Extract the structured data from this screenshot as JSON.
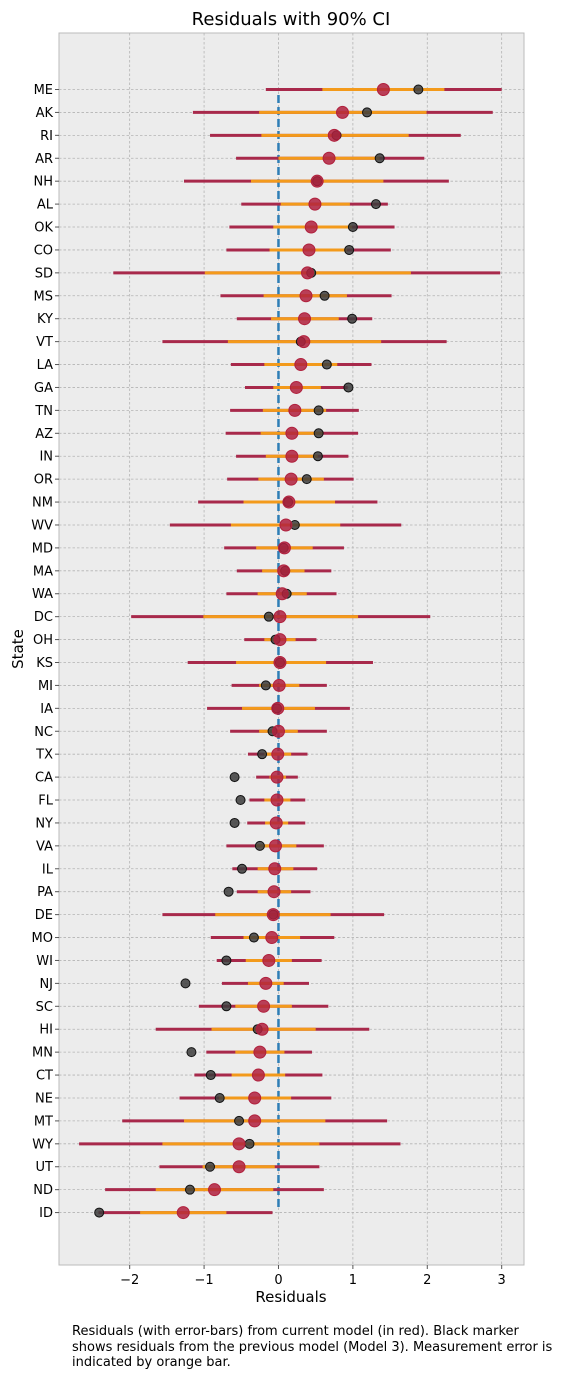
{
  "chart_data": {
    "type": "scatter",
    "title": "Residuals with 90% CI",
    "xlabel": "Residuals",
    "ylabel": "State",
    "xlim": [
      -2.95,
      3.3
    ],
    "xticks": [
      -2,
      -1,
      0,
      1,
      2,
      3
    ],
    "xtick_labels": [
      "−2",
      "−1",
      "0",
      "1",
      "2",
      "3"
    ],
    "grid": true,
    "reference_line_x": 0,
    "colors": {
      "background": "#ececec",
      "current": "#b0203d",
      "ci_line": "#a8294b",
      "measurement": "#f39a1b",
      "previous": "#3c3c3c",
      "reference": "#2e7eb6",
      "grid": "#b3b3b3"
    },
    "states": [
      {
        "state": "ME",
        "current": 1.41,
        "ci": [
          -0.17,
          3.0
        ],
        "meas": [
          0.59,
          2.23
        ],
        "previous": 1.88
      },
      {
        "state": "AK",
        "current": 0.86,
        "ci": [
          -1.15,
          2.88
        ],
        "meas": [
          -0.26,
          1.99
        ],
        "previous": 1.19
      },
      {
        "state": "RI",
        "current": 0.75,
        "ci": [
          -0.92,
          2.45
        ],
        "meas": [
          -0.23,
          1.75
        ],
        "previous": 0.78
      },
      {
        "state": "AR",
        "current": 0.68,
        "ci": [
          -0.57,
          1.96
        ],
        "meas": [
          0.0,
          1.36
        ],
        "previous": 1.36
      },
      {
        "state": "NH",
        "current": 0.52,
        "ci": [
          -1.27,
          2.29
        ],
        "meas": [
          -0.37,
          1.41
        ],
        "previous": 0.52
      },
      {
        "state": "AL",
        "current": 0.49,
        "ci": [
          -0.5,
          1.47
        ],
        "meas": [
          0.03,
          0.96
        ],
        "previous": 1.31
      },
      {
        "state": "OK",
        "current": 0.44,
        "ci": [
          -0.66,
          1.56
        ],
        "meas": [
          -0.07,
          0.99
        ],
        "previous": 1.0
      },
      {
        "state": "CO",
        "current": 0.41,
        "ci": [
          -0.7,
          1.51
        ],
        "meas": [
          -0.12,
          0.92
        ],
        "previous": 0.95
      },
      {
        "state": "SD",
        "current": 0.39,
        "ci": [
          -2.22,
          2.98
        ],
        "meas": [
          -0.99,
          1.78
        ],
        "previous": 0.44
      },
      {
        "state": "MS",
        "current": 0.37,
        "ci": [
          -0.78,
          1.52
        ],
        "meas": [
          -0.2,
          0.92
        ],
        "previous": 0.62
      },
      {
        "state": "KY",
        "current": 0.35,
        "ci": [
          -0.56,
          1.26
        ],
        "meas": [
          -0.1,
          0.81
        ],
        "previous": 0.99
      },
      {
        "state": "VT",
        "current": 0.34,
        "ci": [
          -1.56,
          2.26
        ],
        "meas": [
          -0.68,
          1.38
        ],
        "previous": 0.3
      },
      {
        "state": "LA",
        "current": 0.3,
        "ci": [
          -0.64,
          1.25
        ],
        "meas": [
          -0.19,
          0.79
        ],
        "previous": 0.65
      },
      {
        "state": "GA",
        "current": 0.24,
        "ci": [
          -0.45,
          0.93
        ],
        "meas": [
          -0.07,
          0.57
        ],
        "previous": 0.94
      },
      {
        "state": "TN",
        "current": 0.22,
        "ci": [
          -0.65,
          1.08
        ],
        "meas": [
          -0.21,
          0.64
        ],
        "previous": 0.54
      },
      {
        "state": "AZ",
        "current": 0.18,
        "ci": [
          -0.71,
          1.07
        ],
        "meas": [
          -0.24,
          0.6
        ],
        "previous": 0.54
      },
      {
        "state": "IN",
        "current": 0.18,
        "ci": [
          -0.57,
          0.94
        ],
        "meas": [
          -0.17,
          0.53
        ],
        "previous": 0.53
      },
      {
        "state": "OR",
        "current": 0.17,
        "ci": [
          -0.69,
          1.01
        ],
        "meas": [
          -0.27,
          0.61
        ],
        "previous": 0.38
      },
      {
        "state": "NM",
        "current": 0.14,
        "ci": [
          -1.08,
          1.33
        ],
        "meas": [
          -0.47,
          0.76
        ],
        "previous": 0.13
      },
      {
        "state": "WV",
        "current": 0.1,
        "ci": [
          -1.46,
          1.65
        ],
        "meas": [
          -0.64,
          0.83
        ],
        "previous": 0.22
      },
      {
        "state": "MD",
        "current": 0.08,
        "ci": [
          -0.73,
          0.88
        ],
        "meas": [
          -0.3,
          0.46
        ],
        "previous": 0.07
      },
      {
        "state": "MA",
        "current": 0.07,
        "ci": [
          -0.56,
          0.71
        ],
        "meas": [
          -0.22,
          0.35
        ],
        "previous": 0.09
      },
      {
        "state": "WA",
        "current": 0.05,
        "ci": [
          -0.7,
          0.78
        ],
        "meas": [
          -0.28,
          0.38
        ],
        "previous": 0.11
      },
      {
        "state": "DC",
        "current": 0.02,
        "ci": [
          -1.98,
          2.04
        ],
        "meas": [
          -1.01,
          1.07
        ],
        "previous": -0.13
      },
      {
        "state": "OH",
        "current": 0.02,
        "ci": [
          -0.46,
          0.51
        ],
        "meas": [
          -0.19,
          0.23
        ],
        "previous": -0.04
      },
      {
        "state": "KS",
        "current": 0.02,
        "ci": [
          -1.22,
          1.27
        ],
        "meas": [
          -0.57,
          0.64
        ],
        "previous": 0.02
      },
      {
        "state": "MI",
        "current": 0.01,
        "ci": [
          -0.63,
          0.65
        ],
        "meas": [
          -0.26,
          0.28
        ],
        "previous": -0.17
      },
      {
        "state": "IA",
        "current": -0.01,
        "ci": [
          -0.96,
          0.96
        ],
        "meas": [
          -0.49,
          0.49
        ],
        "previous": -0.02
      },
      {
        "state": "NC",
        "current": 0.0,
        "ci": [
          -0.65,
          0.65
        ],
        "meas": [
          -0.26,
          0.26
        ],
        "previous": -0.08
      },
      {
        "state": "TX",
        "current": -0.01,
        "ci": [
          -0.41,
          0.39
        ],
        "meas": [
          -0.19,
          0.17
        ],
        "previous": -0.22
      },
      {
        "state": "CA",
        "current": -0.02,
        "ci": [
          -0.3,
          0.26
        ],
        "meas": [
          -0.12,
          0.1
        ],
        "previous": -0.59
      },
      {
        "state": "FL",
        "current": -0.02,
        "ci": [
          -0.39,
          0.36
        ],
        "meas": [
          -0.19,
          0.16
        ],
        "previous": -0.51
      },
      {
        "state": "NY",
        "current": -0.03,
        "ci": [
          -0.42,
          0.36
        ],
        "meas": [
          -0.18,
          0.13
        ],
        "previous": -0.59
      },
      {
        "state": "VA",
        "current": -0.04,
        "ci": [
          -0.7,
          0.61
        ],
        "meas": [
          -0.3,
          0.24
        ],
        "previous": -0.25
      },
      {
        "state": "IL",
        "current": -0.05,
        "ci": [
          -0.62,
          0.52
        ],
        "meas": [
          -0.28,
          0.2
        ],
        "previous": -0.49
      },
      {
        "state": "PA",
        "current": -0.06,
        "ci": [
          -0.56,
          0.43
        ],
        "meas": [
          -0.28,
          0.17
        ],
        "previous": -0.67
      },
      {
        "state": "DE",
        "current": -0.07,
        "ci": [
          -1.56,
          1.42
        ],
        "meas": [
          -0.85,
          0.7
        ],
        "previous": -0.07
      },
      {
        "state": "MO",
        "current": -0.09,
        "ci": [
          -0.91,
          0.75
        ],
        "meas": [
          -0.47,
          0.29
        ],
        "previous": -0.33
      },
      {
        "state": "WI",
        "current": -0.13,
        "ci": [
          -0.83,
          0.58
        ],
        "meas": [
          -0.44,
          0.18
        ],
        "previous": -0.7
      },
      {
        "state": "NJ",
        "current": -0.17,
        "ci": [
          -0.76,
          0.41
        ],
        "meas": [
          -0.41,
          0.07
        ],
        "previous": -1.25
      },
      {
        "state": "SC",
        "current": -0.2,
        "ci": [
          -1.07,
          0.67
        ],
        "meas": [
          -0.58,
          0.18
        ],
        "previous": -0.7
      },
      {
        "state": "HI",
        "current": -0.22,
        "ci": [
          -1.65,
          1.22
        ],
        "meas": [
          -0.9,
          0.5
        ],
        "previous": -0.28
      },
      {
        "state": "MN",
        "current": -0.25,
        "ci": [
          -0.97,
          0.45
        ],
        "meas": [
          -0.58,
          0.08
        ],
        "previous": -1.17
      },
      {
        "state": "CT",
        "current": -0.27,
        "ci": [
          -1.13,
          0.59
        ],
        "meas": [
          -0.63,
          0.09
        ],
        "previous": -0.91
      },
      {
        "state": "NE",
        "current": -0.32,
        "ci": [
          -1.33,
          0.71
        ],
        "meas": [
          -0.8,
          0.17
        ],
        "previous": -0.79
      },
      {
        "state": "MT",
        "current": -0.32,
        "ci": [
          -2.1,
          1.46
        ],
        "meas": [
          -1.27,
          0.63
        ],
        "previous": -0.53
      },
      {
        "state": "WY",
        "current": -0.53,
        "ci": [
          -2.68,
          1.64
        ],
        "meas": [
          -1.56,
          0.55
        ],
        "previous": -0.39
      },
      {
        "state": "UT",
        "current": -0.53,
        "ci": [
          -1.6,
          0.55
        ],
        "meas": [
          -1.02,
          -0.05
        ],
        "previous": -0.92
      },
      {
        "state": "ND",
        "current": -0.86,
        "ci": [
          -2.33,
          0.61
        ],
        "meas": [
          -1.65,
          -0.07
        ],
        "previous": -1.19
      },
      {
        "state": "ID",
        "current": -1.28,
        "ci": [
          -2.42,
          -0.08
        ],
        "meas": [
          -1.86,
          -0.7
        ],
        "previous": -2.41
      }
    ]
  },
  "caption": "Residuals (with error-bars) from current model (in red). Black marker shows residuals from the previous model (Model 3). Measurement error is indicated by orange bar."
}
